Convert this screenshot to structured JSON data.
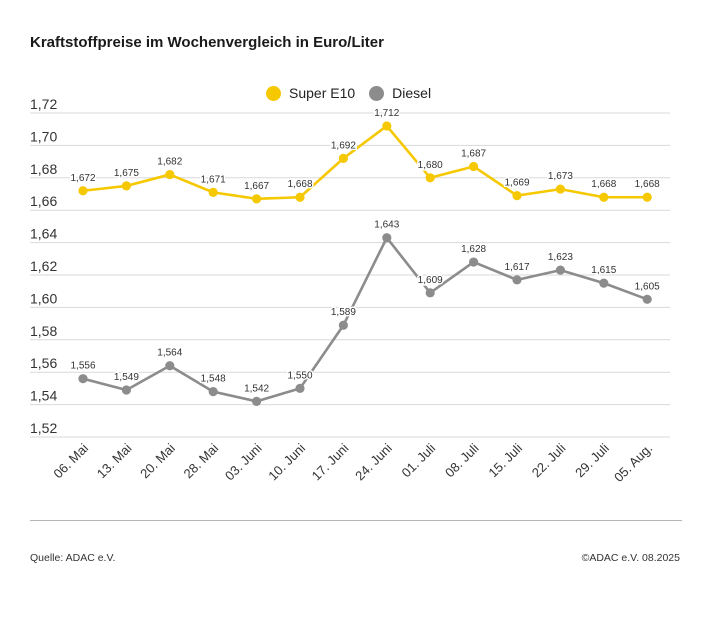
{
  "title": "Kraftstoffpreise im Wochenvergleich in Euro/Liter",
  "footer": {
    "source": "Quelle: ADAC e.V.",
    "copyright": "©ADAC e.V. 08.2025"
  },
  "colors": {
    "super_e10": "#f5c800",
    "diesel": "#8c8c8c",
    "grid": "#d9d9d9",
    "axis_text": "#333333"
  },
  "chart_data": {
    "type": "line",
    "title": "Kraftstoffpreise im Wochenvergleich in Euro/Liter",
    "xlabel": "",
    "ylabel": "",
    "ylim": [
      1.52,
      1.72
    ],
    "y_ticks": [
      1.52,
      1.54,
      1.56,
      1.58,
      1.6,
      1.62,
      1.64,
      1.66,
      1.68,
      1.7,
      1.72
    ],
    "y_tick_labels": [
      "1,52",
      "1,54",
      "1,56",
      "1,58",
      "1,60",
      "1,62",
      "1,64",
      "1,66",
      "1,68",
      "1,70",
      "1,72"
    ],
    "grid": true,
    "legend_position": "top-center",
    "categories": [
      "06. Mai",
      "13. Mai",
      "20. Mai",
      "28. Mai",
      "03. Juni",
      "10. Juni",
      "17. Juni",
      "24. Juni",
      "01. Juli",
      "08. Juli",
      "15. Juli",
      "22. Juli",
      "29. Juli",
      "05. Aug."
    ],
    "series": [
      {
        "name": "Super E10",
        "values": [
          1.672,
          1.675,
          1.682,
          1.671,
          1.667,
          1.668,
          1.692,
          1.712,
          1.68,
          1.687,
          1.669,
          1.673,
          1.668,
          1.668
        ],
        "labels": [
          "1,672",
          "1,675",
          "1,682",
          "1,671",
          "1,667",
          "1,668",
          "1,692",
          "1,712",
          "1,680",
          "1,687",
          "1,669",
          "1,673",
          "1,668",
          "1,668"
        ]
      },
      {
        "name": "Diesel",
        "values": [
          1.556,
          1.549,
          1.564,
          1.548,
          1.542,
          1.55,
          1.589,
          1.643,
          1.609,
          1.628,
          1.617,
          1.623,
          1.615,
          1.605
        ],
        "labels": [
          "1,556",
          "1,549",
          "1,564",
          "1,548",
          "1,542",
          "1,550",
          "1,589",
          "1,643",
          "1,609",
          "1,628",
          "1,617",
          "1,623",
          "1,615",
          "1,605"
        ]
      }
    ]
  }
}
